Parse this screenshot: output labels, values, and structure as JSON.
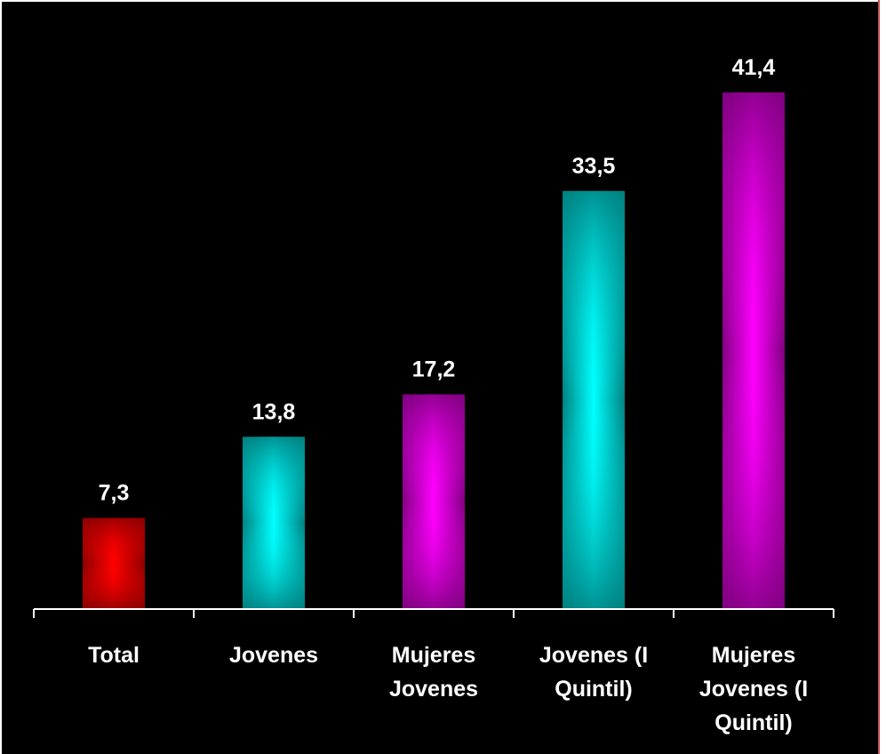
{
  "chart_data": {
    "type": "bar",
    "categories": [
      [
        "Total"
      ],
      [
        "Jovenes"
      ],
      [
        "Mujeres",
        "Jovenes"
      ],
      [
        "Jovenes (I",
        "Quintil)"
      ],
      [
        "Mujeres",
        "Jovenes (I",
        "Quintil)"
      ]
    ],
    "values": [
      7.3,
      13.8,
      17.2,
      33.5,
      41.4
    ],
    "value_labels": [
      "7,3",
      "13,8",
      "17,2",
      "33,5",
      "41,4"
    ],
    "bar_colors": [
      "#ff0000",
      "#00ffff",
      "#ff00ff",
      "#00ffff",
      "#ff00ff"
    ],
    "bar_edge_colors": [
      "#8b0000",
      "#008080",
      "#800080",
      "#008080",
      "#800080"
    ],
    "ylim": [
      0,
      41.4
    ],
    "grid": false,
    "background": "#000000",
    "text_color": "#ffffff"
  }
}
